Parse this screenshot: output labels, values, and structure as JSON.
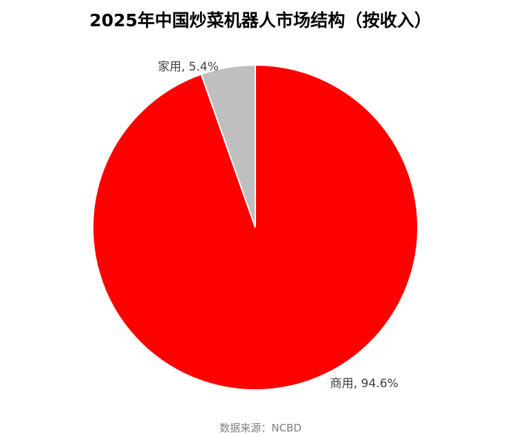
{
  "chart_data": {
    "type": "pie",
    "title": "2025年中国炒菜机器人市场结构（按收入）",
    "slices": [
      {
        "name": "家用",
        "value": 5.4,
        "label": "家用, 5.4%",
        "color": "#bfbfbf"
      },
      {
        "name": "商用",
        "value": 94.6,
        "label": "商用, 94.6%",
        "color": "#ff0000"
      }
    ],
    "start_angle": "12 o'clock",
    "direction": "counterclockwise for first slice"
  },
  "source": "数据来源：NCBD"
}
